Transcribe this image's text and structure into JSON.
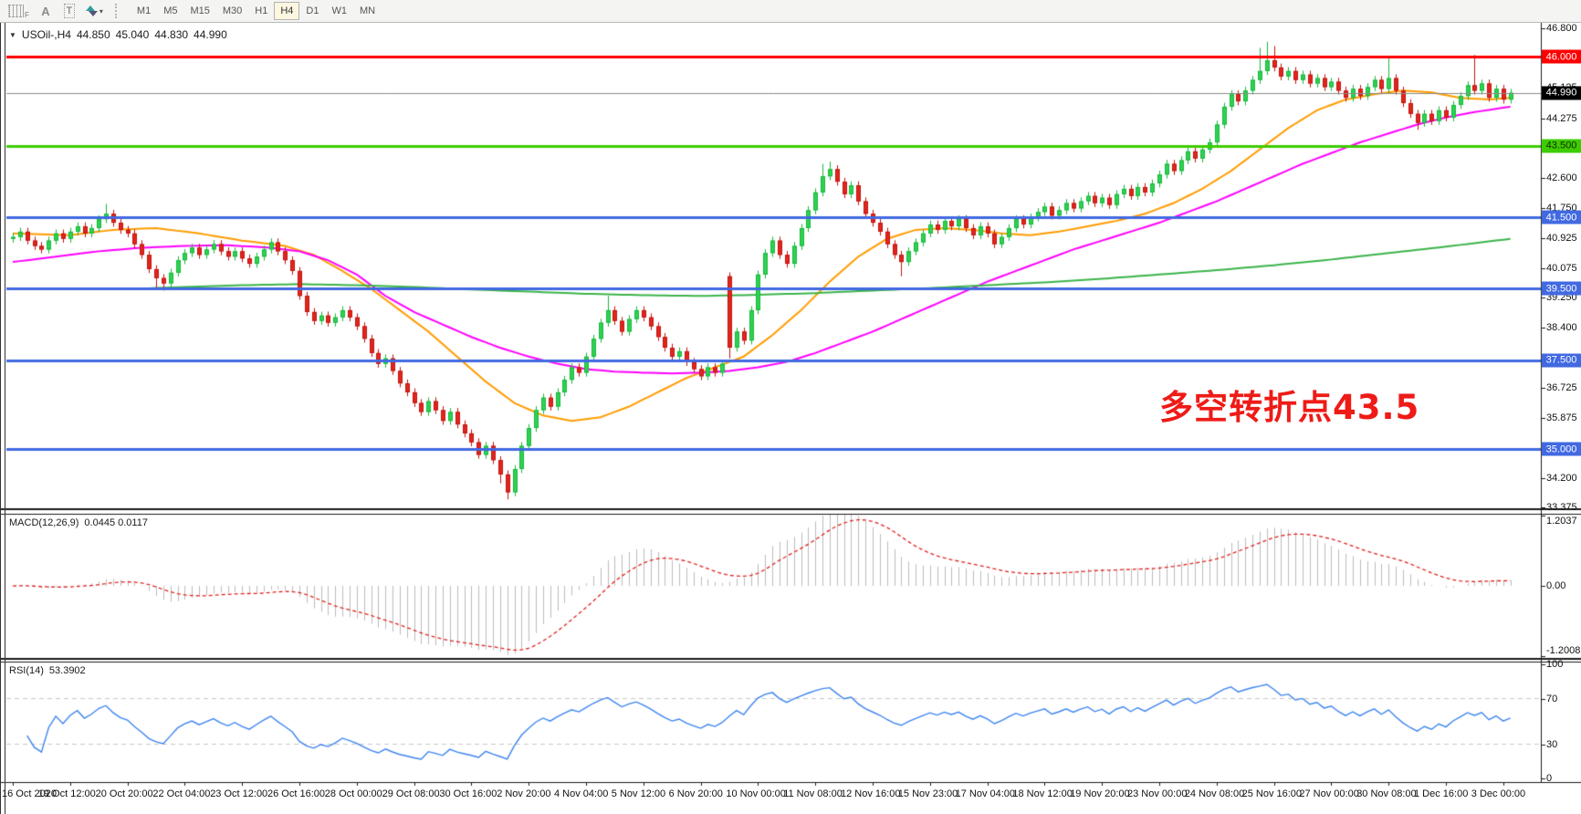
{
  "toolbar": {
    "tools": [
      {
        "name": "templates-grid-tool",
        "style": "grid",
        "glyph": "F"
      },
      {
        "name": "text-tool",
        "style": "plain",
        "glyph": "A"
      },
      {
        "name": "text-label-tool",
        "style": "boxed",
        "glyph": "T"
      },
      {
        "name": "arrows-tool",
        "style": "arrows",
        "glyph": "▾"
      }
    ],
    "timeframes": [
      "M1",
      "M5",
      "M15",
      "M30",
      "H1",
      "H4",
      "D1",
      "W1",
      "MN"
    ],
    "active_timeframe": "H4"
  },
  "chart": {
    "title": {
      "menu_glyph": "▼",
      "symbol": "USOil-,H4",
      "open": "44.850",
      "high": "45.040",
      "low": "44.830",
      "close": "44.990"
    },
    "annotation": {
      "text": "多空转折点43.5",
      "color": "#ee1b17",
      "index": 160,
      "price": 36.95
    }
  },
  "chart_data": [
    {
      "type": "candlestick",
      "panel": "price",
      "symbol": "USOil",
      "timeframe": "H4",
      "ylim": [
        33.3,
        46.95
      ],
      "up_color": "#2fd152",
      "up_border": "#17b93c",
      "down_color": "#e1261d",
      "down_border": "#c21510",
      "default_wick": 0.11,
      "closes": [
        40.95,
        41.1,
        40.85,
        40.7,
        40.6,
        40.85,
        41.05,
        40.9,
        41.1,
        41.25,
        41.05,
        41.2,
        41.45,
        41.6,
        41.35,
        41.15,
        41.05,
        40.75,
        40.45,
        40.05,
        39.8,
        39.65,
        39.95,
        40.3,
        40.5,
        40.65,
        40.45,
        40.6,
        40.75,
        40.55,
        40.4,
        40.55,
        40.35,
        40.2,
        40.4,
        40.6,
        40.8,
        40.55,
        40.3,
        40.0,
        39.3,
        38.85,
        38.6,
        38.75,
        38.55,
        38.7,
        38.9,
        38.7,
        38.45,
        38.1,
        37.7,
        37.4,
        37.55,
        37.2,
        36.85,
        36.6,
        36.3,
        36.05,
        36.35,
        36.1,
        35.8,
        36.05,
        35.7,
        35.45,
        35.2,
        34.85,
        35.1,
        34.7,
        34.3,
        33.8,
        34.45,
        35.1,
        35.6,
        36.1,
        36.45,
        36.2,
        36.6,
        36.95,
        37.3,
        37.15,
        37.6,
        38.1,
        38.55,
        38.9,
        38.6,
        38.3,
        38.65,
        38.9,
        38.7,
        38.45,
        38.15,
        37.85,
        37.6,
        37.75,
        37.45,
        37.25,
        37.05,
        37.3,
        37.15,
        37.4,
        37.85,
        38.3,
        38.05,
        38.9,
        39.9,
        40.5,
        40.85,
        40.45,
        40.2,
        40.7,
        41.2,
        41.7,
        42.2,
        42.65,
        42.85,
        42.5,
        42.15,
        42.4,
        41.95,
        41.6,
        41.35,
        41.1,
        40.75,
        40.45,
        40.25,
        40.55,
        40.8,
        41.05,
        41.3,
        41.15,
        41.4,
        41.25,
        41.45,
        41.2,
        41.0,
        41.25,
        41.05,
        40.75,
        40.95,
        41.2,
        41.45,
        41.3,
        41.5,
        41.65,
        41.8,
        41.55,
        41.7,
        41.9,
        41.75,
        41.95,
        42.1,
        41.9,
        42.05,
        41.85,
        42.15,
        42.3,
        42.1,
        42.35,
        42.2,
        42.45,
        42.7,
        43.0,
        42.8,
        43.1,
        43.35,
        43.15,
        43.4,
        43.6,
        44.1,
        44.6,
        44.95,
        44.75,
        45.05,
        45.35,
        45.6,
        45.9,
        45.7,
        45.45,
        45.6,
        45.35,
        45.5,
        45.25,
        45.4,
        45.15,
        45.3,
        45.05,
        44.85,
        45.1,
        44.9,
        45.15,
        45.35,
        45.1,
        45.4,
        45.05,
        44.7,
        44.4,
        44.15,
        44.4,
        44.2,
        44.5,
        44.3,
        44.65,
        44.9,
        45.2,
        45.05,
        45.25,
        44.85,
        45.1,
        44.8,
        44.99
      ],
      "open_overrides": {
        "100": 39.85
      },
      "wick_overrides": {
        "13": {
          "h": 41.88
        },
        "20": {
          "l": 39.5
        },
        "21": {
          "l": 39.45
        },
        "68": {
          "l": 34.05
        },
        "69": {
          "l": 33.6
        },
        "83": {
          "h": 39.3
        },
        "100": {
          "l": 37.55
        },
        "113": {
          "h": 43.0
        },
        "114": {
          "h": 43.06
        },
        "124": {
          "l": 39.85
        },
        "174": {
          "h": 46.25
        },
        "175": {
          "h": 46.42
        },
        "176": {
          "h": 46.3
        },
        "192": {
          "h": 45.95
        },
        "196": {
          "l": 43.95
        },
        "204": {
          "h": 46.05
        }
      },
      "moving_averages": [
        {
          "name": "ma-fast",
          "color": "#ff9c00",
          "points": [
            [
              0,
              41.05
            ],
            [
              8,
              41.0
            ],
            [
              14,
              41.15
            ],
            [
              20,
              41.2
            ],
            [
              26,
              41.05
            ],
            [
              32,
              40.85
            ],
            [
              38,
              40.7
            ],
            [
              42,
              40.45
            ],
            [
              46,
              40.0
            ],
            [
              50,
              39.5
            ],
            [
              54,
              38.9
            ],
            [
              58,
              38.3
            ],
            [
              62,
              37.6
            ],
            [
              66,
              36.9
            ],
            [
              70,
              36.3
            ],
            [
              74,
              35.95
            ],
            [
              78,
              35.8
            ],
            [
              82,
              35.9
            ],
            [
              86,
              36.2
            ],
            [
              90,
              36.6
            ],
            [
              94,
              37.0
            ],
            [
              98,
              37.3
            ],
            [
              102,
              37.6
            ],
            [
              106,
              38.2
            ],
            [
              110,
              38.9
            ],
            [
              114,
              39.7
            ],
            [
              118,
              40.4
            ],
            [
              122,
              40.9
            ],
            [
              126,
              41.15
            ],
            [
              130,
              41.2
            ],
            [
              134,
              41.15
            ],
            [
              138,
              41.05
            ],
            [
              142,
              41.0
            ],
            [
              146,
              41.1
            ],
            [
              150,
              41.25
            ],
            [
              154,
              41.4
            ],
            [
              158,
              41.6
            ],
            [
              162,
              41.9
            ],
            [
              166,
              42.3
            ],
            [
              170,
              42.8
            ],
            [
              174,
              43.4
            ],
            [
              178,
              44.0
            ],
            [
              182,
              44.5
            ],
            [
              186,
              44.8
            ],
            [
              190,
              44.95
            ],
            [
              194,
              45.05
            ],
            [
              198,
              45.0
            ],
            [
              202,
              44.85
            ],
            [
              206,
              44.8
            ],
            [
              209,
              44.85
            ]
          ]
        },
        {
          "name": "ma-mid",
          "color": "#ff00ff",
          "points": [
            [
              0,
              40.25
            ],
            [
              6,
              40.4
            ],
            [
              12,
              40.55
            ],
            [
              18,
              40.65
            ],
            [
              24,
              40.7
            ],
            [
              30,
              40.72
            ],
            [
              36,
              40.65
            ],
            [
              40,
              40.55
            ],
            [
              44,
              40.3
            ],
            [
              48,
              39.9
            ],
            [
              52,
              39.3
            ],
            [
              56,
              38.85
            ],
            [
              60,
              38.5
            ],
            [
              64,
              38.15
            ],
            [
              68,
              37.85
            ],
            [
              72,
              37.6
            ],
            [
              76,
              37.4
            ],
            [
              80,
              37.25
            ],
            [
              84,
              37.18
            ],
            [
              88,
              37.15
            ],
            [
              92,
              37.13
            ],
            [
              96,
              37.15
            ],
            [
              100,
              37.2
            ],
            [
              104,
              37.3
            ],
            [
              108,
              37.45
            ],
            [
              112,
              37.7
            ],
            [
              116,
              38.0
            ],
            [
              120,
              38.3
            ],
            [
              124,
              38.65
            ],
            [
              128,
              39.0
            ],
            [
              132,
              39.35
            ],
            [
              136,
              39.7
            ],
            [
              140,
              40.0
            ],
            [
              144,
              40.3
            ],
            [
              148,
              40.6
            ],
            [
              152,
              40.85
            ],
            [
              156,
              41.1
            ],
            [
              160,
              41.35
            ],
            [
              164,
              41.65
            ],
            [
              168,
              41.95
            ],
            [
              172,
              42.3
            ],
            [
              176,
              42.65
            ],
            [
              180,
              43.0
            ],
            [
              184,
              43.3
            ],
            [
              188,
              43.6
            ],
            [
              192,
              43.85
            ],
            [
              196,
              44.1
            ],
            [
              200,
              44.3
            ],
            [
              204,
              44.45
            ],
            [
              209,
              44.6
            ]
          ]
        },
        {
          "name": "ma-slow",
          "color": "#3cb44a",
          "points": [
            [
              17,
              39.5
            ],
            [
              24,
              39.55
            ],
            [
              32,
              39.6
            ],
            [
              40,
              39.63
            ],
            [
              48,
              39.6
            ],
            [
              56,
              39.55
            ],
            [
              64,
              39.48
            ],
            [
              72,
              39.42
            ],
            [
              80,
              39.36
            ],
            [
              88,
              39.32
            ],
            [
              96,
              39.3
            ],
            [
              104,
              39.33
            ],
            [
              112,
              39.38
            ],
            [
              120,
              39.45
            ],
            [
              128,
              39.52
            ],
            [
              136,
              39.6
            ],
            [
              144,
              39.68
            ],
            [
              152,
              39.78
            ],
            [
              160,
              39.9
            ],
            [
              168,
              40.02
            ],
            [
              176,
              40.16
            ],
            [
              184,
              40.32
            ],
            [
              192,
              40.5
            ],
            [
              200,
              40.68
            ],
            [
              209,
              40.9
            ]
          ]
        }
      ],
      "hlines": [
        {
          "label": "46.000",
          "price": 46.0,
          "color": "#fe0000",
          "bg": "#fe0000",
          "fg": "#ffffff",
          "width": 3
        },
        {
          "label": "43.500",
          "price": 43.5,
          "color": "#3ecc00",
          "bg": "#3ecc00",
          "fg": "#0b2d00",
          "width": 3
        },
        {
          "label": "41.500",
          "price": 41.5,
          "color": "#4169e1",
          "bg": "#4169e1",
          "fg": "#ffffff",
          "width": 3
        },
        {
          "label": "39.500",
          "price": 39.5,
          "color": "#4169e1",
          "bg": "#4169e1",
          "fg": "#ffffff",
          "width": 3
        },
        {
          "label": "37.500",
          "price": 37.5,
          "color": "#4169e1",
          "bg": "#4169e1",
          "fg": "#ffffff",
          "width": 3
        },
        {
          "label": "35.000",
          "price": 35.0,
          "color": "#4169e1",
          "bg": "#4169e1",
          "fg": "#ffffff",
          "width": 3
        }
      ],
      "price_line": {
        "label": "44.990",
        "price": 44.99,
        "color": "#8a8a8a",
        "bg": "#000000",
        "fg": "#ffffff"
      },
      "axis_ticks": [
        {
          "label": "46.800",
          "value": 46.8
        },
        {
          "label": "45.125",
          "value": 45.125
        },
        {
          "label": "44.275",
          "value": 44.275
        },
        {
          "label": "42.600",
          "value": 42.6
        },
        {
          "label": "41.750",
          "value": 41.75
        },
        {
          "label": "40.925",
          "value": 40.925
        },
        {
          "label": "40.075",
          "value": 40.075
        },
        {
          "label": "39.250",
          "value": 39.25
        },
        {
          "label": "38.400",
          "value": 38.4
        },
        {
          "label": "36.725",
          "value": 36.725
        },
        {
          "label": "35.875",
          "value": 35.875
        },
        {
          "label": "34.200",
          "value": 34.2
        },
        {
          "label": "33.375",
          "value": 33.375
        }
      ]
    },
    {
      "type": "macd",
      "panel": "macd",
      "label": "MACD(12,26,9)",
      "values_text": "0.0445 0.0117",
      "params": {
        "fast": 12,
        "slow": 26,
        "signal": 9
      },
      "ylim": [
        -1.2008,
        1.2037
      ],
      "histogram_color": "#bdbdbd",
      "signal_color": "#e02420",
      "axis_ticks": [
        {
          "label": "1.2037",
          "value": 1.2037
        },
        {
          "label": "0.00",
          "value": 0
        },
        {
          "label": "-1.2008",
          "value": -1.2008
        }
      ]
    },
    {
      "type": "rsi",
      "panel": "rsi",
      "label": "RSI(14)",
      "value_text": "53.3902",
      "period": 14,
      "ylim": [
        0,
        100
      ],
      "levels": [
        30,
        70
      ],
      "level_color": "#c8c8c8",
      "line_color": "#3d85f0",
      "axis_ticks": [
        {
          "label": "100",
          "value": 100
        },
        {
          "label": "70",
          "value": 70
        },
        {
          "label": "30",
          "value": 30
        },
        {
          "label": "0",
          "value": 0
        }
      ]
    }
  ],
  "x_axis": {
    "labels": [
      {
        "text": "16 Oct 2020",
        "index": 0
      },
      {
        "text": "19 Oct 12:00",
        "index": 8
      },
      {
        "text": "20 Oct 20:00",
        "index": 16
      },
      {
        "text": "22 Oct 04:00",
        "index": 24
      },
      {
        "text": "23 Oct 12:00",
        "index": 32
      },
      {
        "text": "26 Oct 16:00",
        "index": 40
      },
      {
        "text": "28 Oct 00:00",
        "index": 48
      },
      {
        "text": "29 Oct 08:00",
        "index": 56
      },
      {
        "text": "30 Oct 16:00",
        "index": 64
      },
      {
        "text": "2 Nov 20:00",
        "index": 72
      },
      {
        "text": "4 Nov 04:00",
        "index": 80
      },
      {
        "text": "5 Nov 12:00",
        "index": 88
      },
      {
        "text": "6 Nov 20:00",
        "index": 96
      },
      {
        "text": "10 Nov 00:00",
        "index": 104
      },
      {
        "text": "11 Nov 08:00",
        "index": 112
      },
      {
        "text": "12 Nov 16:00",
        "index": 120
      },
      {
        "text": "15 Nov 23:00",
        "index": 128
      },
      {
        "text": "17 Nov 04:00",
        "index": 136
      },
      {
        "text": "18 Nov 12:00",
        "index": 144
      },
      {
        "text": "19 Nov 20:00",
        "index": 152
      },
      {
        "text": "23 Nov 00:00",
        "index": 160
      },
      {
        "text": "24 Nov 08:00",
        "index": 168
      },
      {
        "text": "25 Nov 16:00",
        "index": 176
      },
      {
        "text": "27 Nov 00:00",
        "index": 184
      },
      {
        "text": "30 Nov 08:00",
        "index": 192
      },
      {
        "text": "1 Dec 16:00",
        "index": 200
      },
      {
        "text": "3 Dec 00:00",
        "index": 208
      }
    ]
  }
}
